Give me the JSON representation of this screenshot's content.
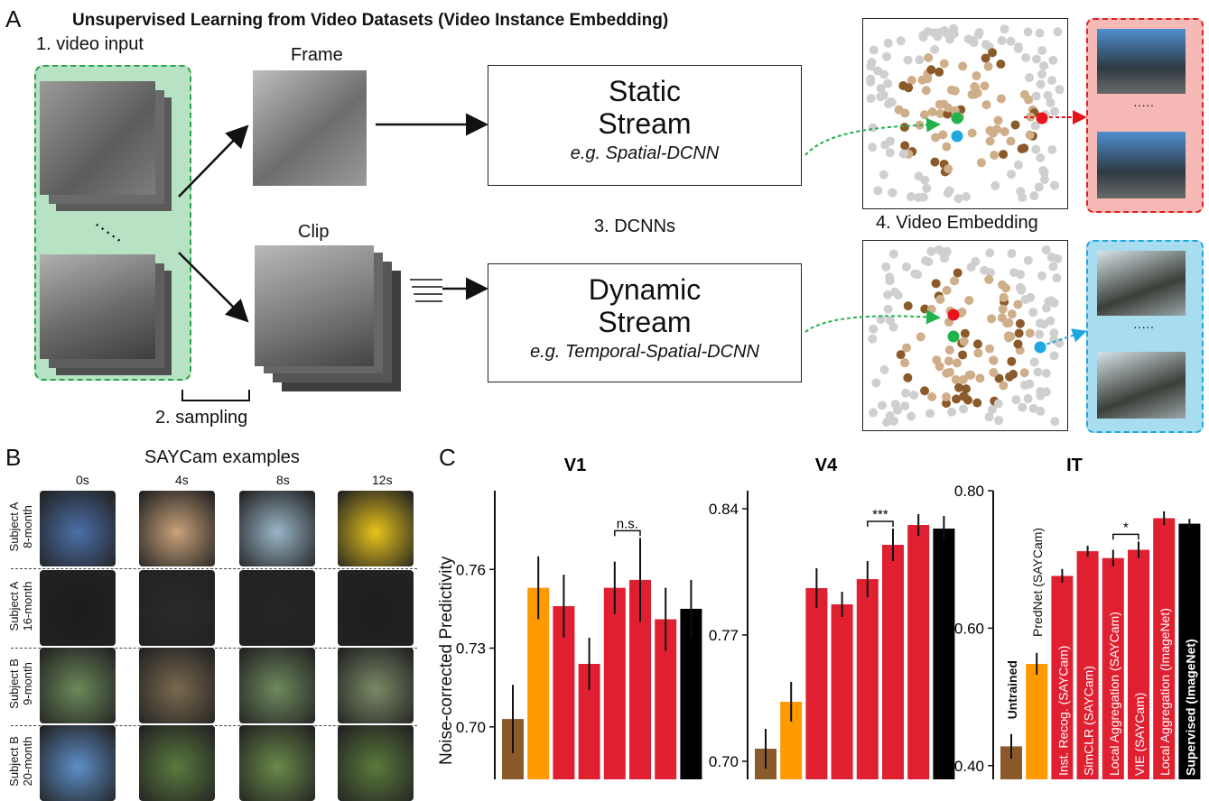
{
  "panel_a": {
    "letter": "A",
    "title": "Unsupervised Learning from Video Datasets (Video Instance Embedding)",
    "step1": "1. video input",
    "step2": "2. sampling",
    "step3": "3. DCNNs",
    "step4": "4. Video Embedding",
    "frame_label": "Frame",
    "clip_label": "Clip",
    "static_title_1": "Static",
    "static_title_2": "Stream",
    "static_sub": "e.g. Spatial-DCNN",
    "dynamic_title_1": "Dynamic",
    "dynamic_title_2": "Stream",
    "dynamic_sub": "e.g. Temporal-Spatial-DCNN",
    "colors": {
      "green_box": "#b7e3c4",
      "red_box": "#f6b9b6",
      "blue_box": "#a8dcef",
      "brown": "#8b5a2b",
      "tan": "#cfae8a",
      "dot_gray": "#cfcfcf",
      "green_dot": "#22b24c",
      "red_dot": "#e8141c",
      "blue_dot": "#1ea7e0"
    }
  },
  "panel_b": {
    "letter": "B",
    "title": "SAYCam examples",
    "times": [
      "0s",
      "4s",
      "8s",
      "12s"
    ],
    "rows": [
      {
        "l1": "Subject A",
        "l2": "8-month"
      },
      {
        "l1": "Subject A",
        "l2": "16-month"
      },
      {
        "l1": "Subject B",
        "l2": "9-month"
      },
      {
        "l1": "Subject B",
        "l2": "20-month"
      }
    ]
  },
  "panel_c": {
    "letter": "C",
    "ylabel": "Noise-corrected Predictivity"
  },
  "chart_data": [
    {
      "type": "bar",
      "title": "V1",
      "ylim": [
        0.68,
        0.79
      ],
      "ticks": [
        "0.70",
        "0.73",
        "0.76"
      ],
      "tick_values": [
        0.7,
        0.73,
        0.76
      ],
      "values": [
        0.703,
        0.753,
        0.746,
        0.724,
        0.753,
        0.756,
        0.741,
        0.745
      ],
      "errors": [
        0.013,
        0.012,
        0.012,
        0.01,
        0.01,
        0.016,
        0.012,
        0.011
      ],
      "colors": [
        "#8b5a2b",
        "#ff9a00",
        "#e02030",
        "#e02030",
        "#e02030",
        "#e02030",
        "#e02030",
        "#000000"
      ],
      "significance": {
        "text": "n.s.",
        "from": 4,
        "to": 5
      }
    },
    {
      "type": "bar",
      "title": "V4",
      "ylim": [
        0.69,
        0.85
      ],
      "ticks": [
        "0.70",
        "0.77",
        "0.84"
      ],
      "tick_values": [
        0.7,
        0.77,
        0.84
      ],
      "values": [
        0.707,
        0.733,
        0.796,
        0.787,
        0.801,
        0.82,
        0.831,
        0.829
      ],
      "errors": [
        0.011,
        0.011,
        0.011,
        0.007,
        0.01,
        0.009,
        0.006,
        0.007
      ],
      "colors": [
        "#8b5a2b",
        "#ff9a00",
        "#e02030",
        "#e02030",
        "#e02030",
        "#e02030",
        "#e02030",
        "#000000"
      ],
      "significance": {
        "text": "***",
        "from": 4,
        "to": 5
      }
    },
    {
      "type": "bar",
      "title": "IT",
      "ylim": [
        0.38,
        0.8
      ],
      "ticks": [
        "0.40",
        "0.60",
        "0.80"
      ],
      "tick_values": [
        0.4,
        0.6,
        0.8
      ],
      "categories": [
        "Untrained",
        "PredNet (SAYCam)",
        "Inst. Recog. (SAYCam)",
        "SimCLR (SAYCam)",
        "Local Aggregation (SAYCam)",
        "VIE (SAYCam)",
        "Local Aggregation (ImageNet)",
        "Supervised (ImageNet)"
      ],
      "values": [
        0.428,
        0.548,
        0.676,
        0.712,
        0.702,
        0.714,
        0.76,
        0.752
      ],
      "errors": [
        0.018,
        0.016,
        0.01,
        0.008,
        0.012,
        0.012,
        0.01,
        0.007
      ],
      "colors": [
        "#8b5a2b",
        "#ff9a00",
        "#e02030",
        "#e02030",
        "#e02030",
        "#e02030",
        "#e02030",
        "#000000"
      ],
      "significance": {
        "text": "*",
        "from": 4,
        "to": 5
      }
    }
  ]
}
